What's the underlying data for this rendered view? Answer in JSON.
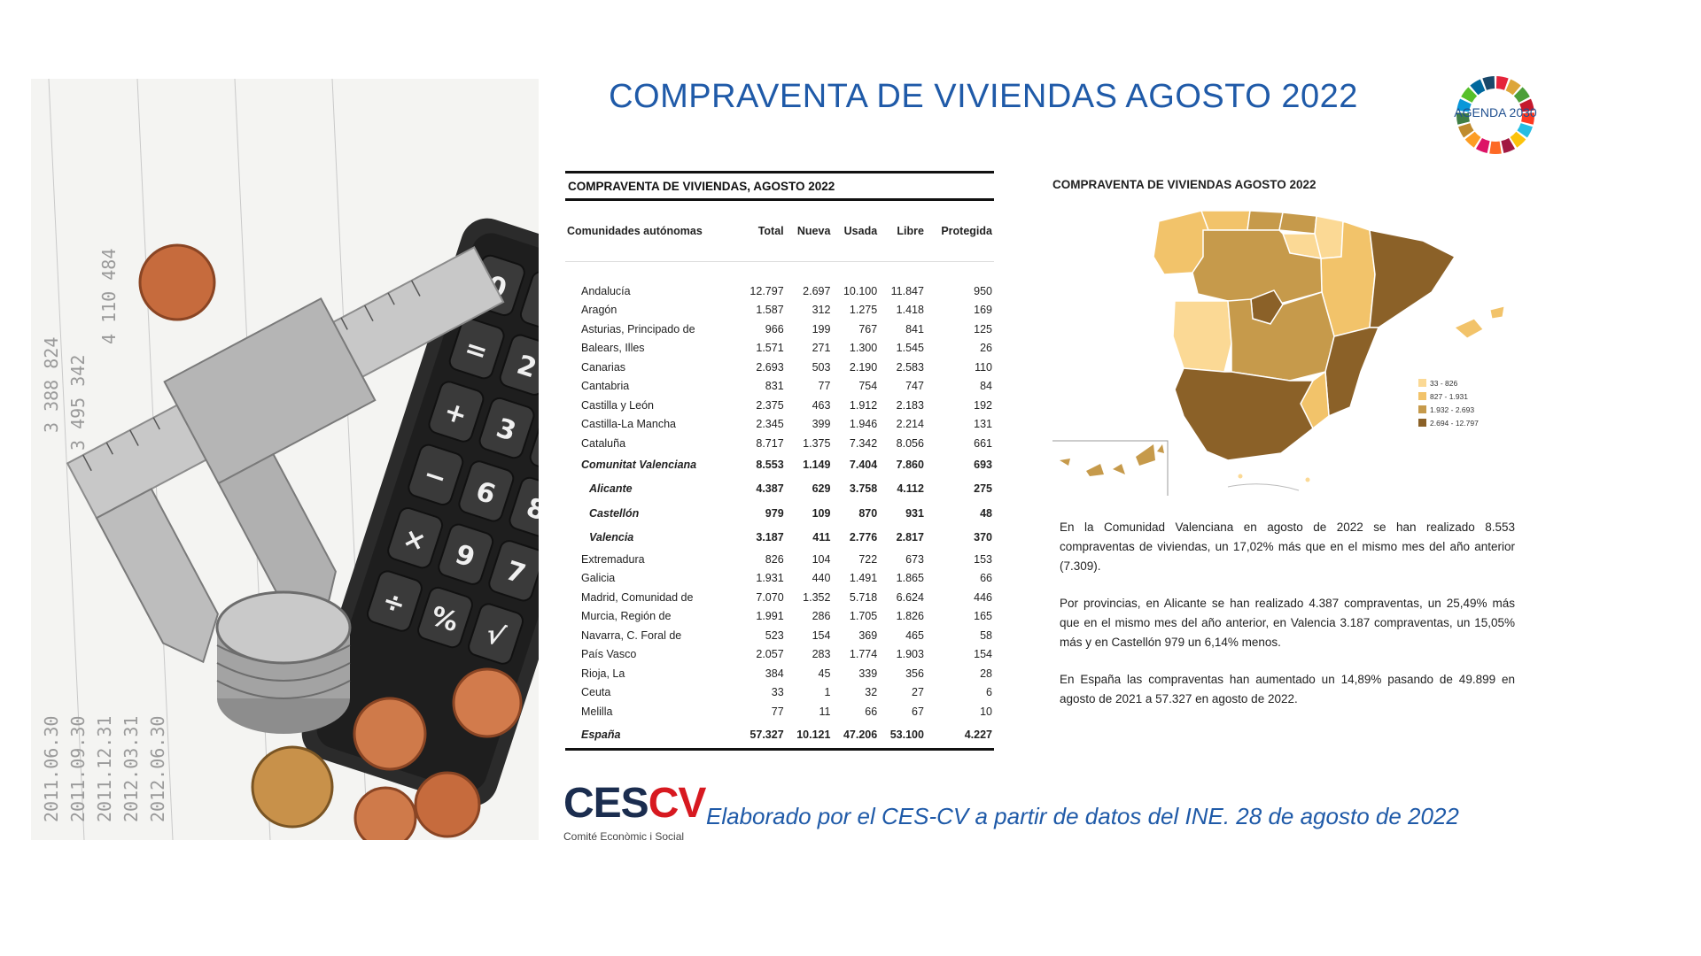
{
  "title": "COMPRAVENTA DE VIVIENDAS AGOSTO 2022",
  "agenda_logo": {
    "label": "AGENDA 2030",
    "colors": [
      "#e5243b",
      "#dda63a",
      "#4c9f38",
      "#c5192d",
      "#ff3a21",
      "#26bde2",
      "#fcc30b",
      "#a21942",
      "#fd6925",
      "#dd1367",
      "#fd9d24",
      "#bf8b2e",
      "#3f7e44",
      "#0a97d9",
      "#56c02b",
      "#00689d",
      "#19486a"
    ]
  },
  "table": {
    "title": "COMPRAVENTA DE VIVIENDAS, AGOSTO 2022",
    "headers": [
      "Comunidades autónomas",
      "Total",
      "Nueva",
      "Usada",
      "Libre",
      "Protegida"
    ],
    "rows": [
      {
        "name": "Andalucía",
        "total": "12.797",
        "nueva": "2.697",
        "usada": "10.100",
        "libre": "11.847",
        "protegida": "950",
        "style": "normal"
      },
      {
        "name": "Aragón",
        "total": "1.587",
        "nueva": "312",
        "usada": "1.275",
        "libre": "1.418",
        "protegida": "169",
        "style": "normal"
      },
      {
        "name": "Asturias, Principado de",
        "total": "966",
        "nueva": "199",
        "usada": "767",
        "libre": "841",
        "protegida": "125",
        "style": "normal"
      },
      {
        "name": "Balears, Illes",
        "total": "1.571",
        "nueva": "271",
        "usada": "1.300",
        "libre": "1.545",
        "protegida": "26",
        "style": "normal"
      },
      {
        "name": "Canarias",
        "total": "2.693",
        "nueva": "503",
        "usada": "2.190",
        "libre": "2.583",
        "protegida": "110",
        "style": "normal"
      },
      {
        "name": "Cantabria",
        "total": "831",
        "nueva": "77",
        "usada": "754",
        "libre": "747",
        "protegida": "84",
        "style": "normal"
      },
      {
        "name": "Castilla y León",
        "total": "2.375",
        "nueva": "463",
        "usada": "1.912",
        "libre": "2.183",
        "protegida": "192",
        "style": "normal"
      },
      {
        "name": "Castilla-La Mancha",
        "total": "2.345",
        "nueva": "399",
        "usada": "1.946",
        "libre": "2.214",
        "protegida": "131",
        "style": "normal"
      },
      {
        "name": "Cataluña",
        "total": "8.717",
        "nueva": "1.375",
        "usada": "7.342",
        "libre": "8.056",
        "protegida": "661",
        "style": "normal"
      },
      {
        "name": "Comunitat Valenciana",
        "total": "8.553",
        "nueva": "1.149",
        "usada": "7.404",
        "libre": "7.860",
        "protegida": "693",
        "style": "bold"
      },
      {
        "name": "Alicante",
        "total": "4.387",
        "nueva": "629",
        "usada": "3.758",
        "libre": "4.112",
        "protegida": "275",
        "style": "prov"
      },
      {
        "name": "Castellón",
        "total": "979",
        "nueva": "109",
        "usada": "870",
        "libre": "931",
        "protegida": "48",
        "style": "prov"
      },
      {
        "name": "Valencia",
        "total": "3.187",
        "nueva": "411",
        "usada": "2.776",
        "libre": "2.817",
        "protegida": "370",
        "style": "prov"
      },
      {
        "name": "Extremadura",
        "total": "826",
        "nueva": "104",
        "usada": "722",
        "libre": "673",
        "protegida": "153",
        "style": "normal"
      },
      {
        "name": "Galicia",
        "total": "1.931",
        "nueva": "440",
        "usada": "1.491",
        "libre": "1.865",
        "protegida": "66",
        "style": "normal"
      },
      {
        "name": "Madrid, Comunidad de",
        "total": "7.070",
        "nueva": "1.352",
        "usada": "5.718",
        "libre": "6.624",
        "protegida": "446",
        "style": "normal"
      },
      {
        "name": "Murcia, Región de",
        "total": "1.991",
        "nueva": "286",
        "usada": "1.705",
        "libre": "1.826",
        "protegida": "165",
        "style": "normal"
      },
      {
        "name": "Navarra, C. Foral de",
        "total": "523",
        "nueva": "154",
        "usada": "369",
        "libre": "465",
        "protegida": "58",
        "style": "normal"
      },
      {
        "name": "País Vasco",
        "total": "2.057",
        "nueva": "283",
        "usada": "1.774",
        "libre": "1.903",
        "protegida": "154",
        "style": "normal"
      },
      {
        "name": "Rioja, La",
        "total": "384",
        "nueva": "45",
        "usada": "339",
        "libre": "356",
        "protegida": "28",
        "style": "normal"
      },
      {
        "name": "Ceuta",
        "total": "33",
        "nueva": "1",
        "usada": "32",
        "libre": "27",
        "protegida": "6",
        "style": "normal"
      },
      {
        "name": "Melilla",
        "total": "77",
        "nueva": "11",
        "usada": "66",
        "libre": "67",
        "protegida": "10",
        "style": "normal"
      },
      {
        "name": "España",
        "total": "57.327",
        "nueva": "10.121",
        "usada": "47.206",
        "libre": "53.100",
        "protegida": "4.227",
        "style": "total"
      }
    ]
  },
  "map": {
    "title": "COMPRAVENTA DE VIVIENDAS AGOSTO 2022",
    "legend": [
      {
        "label": "33 - 826",
        "color": "#fbd995"
      },
      {
        "label": "827 - 1.931",
        "color": "#f2c36a"
      },
      {
        "label": "1.932 - 2.693",
        "color": "#c69a4b"
      },
      {
        "label": "2.694 - 12.797",
        "color": "#8b6128"
      }
    ]
  },
  "paragraphs": [
    "En la Comunidad Valenciana en agosto de 2022 se han realizado 8.553 compraventas de viviendas, un 17,02% más que en el mismo mes del año anterior (7.309).",
    "Por provincias, en Alicante se han realizado 4.387 compraventas, un 25,49% más que en el mismo mes del año anterior, en Valencia 3.187 compraventas, un 15,05% más y en Castellón 979 un 6,14% menos.",
    "En España las compraventas han aumentado un 14,89% pasando de 49.899 en agosto de 2021 a 57.327 en agosto de 2022."
  ],
  "footer": {
    "logo_ces": "CES",
    "logo_cv": "CV",
    "logo_subtitle": "Comité Econòmic i Social",
    "note": "Elaborado por el CES-CV a partir de datos del INE. 28 de agosto de 2022"
  }
}
